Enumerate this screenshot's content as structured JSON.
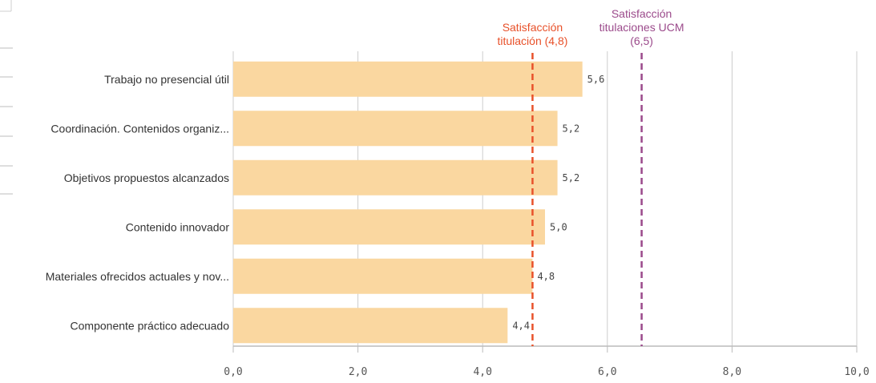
{
  "chart_data": {
    "type": "bar",
    "orientation": "horizontal",
    "categories": [
      "Trabajo no presencial útil",
      "Coordinación. Contenidos organiz...",
      "Objetivos propuestos alcanzados",
      "Contenido innovador",
      "Materiales ofrecidos actuales y nov...",
      "Componente práctico adecuado"
    ],
    "values": [
      5.6,
      5.2,
      5.2,
      5.0,
      4.8,
      4.4
    ],
    "value_labels": [
      "5,6",
      "5,2",
      "5,2",
      "5,0",
      "4,8",
      "4,4"
    ],
    "xlim": [
      0,
      10
    ],
    "xticks": [
      0,
      2,
      4,
      6,
      8,
      10
    ],
    "xtick_labels": [
      "0,0",
      "2,0",
      "4,0",
      "6,0",
      "8,0",
      "10,0"
    ],
    "grid": true,
    "bar_color": "#FAD7A0",
    "reference_lines": [
      {
        "value": 4.8,
        "label_lines": [
          "Satisfacción",
          "titulación (4,8)"
        ],
        "color": "#E8512A"
      },
      {
        "value": 6.55,
        "label_lines": [
          "Satisfacción",
          "titulaciones UCM",
          "(6,5)"
        ],
        "color": "#9B4A8B"
      }
    ]
  }
}
